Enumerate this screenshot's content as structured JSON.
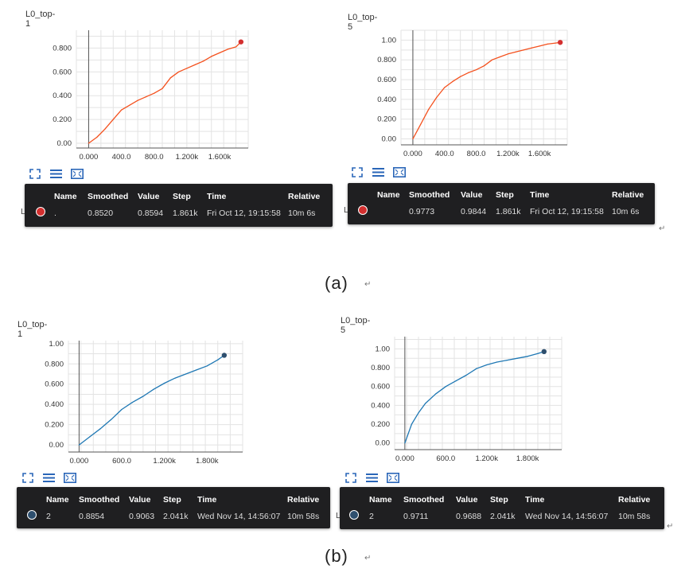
{
  "captions": {
    "a": "(a)",
    "b": "(b)",
    "return_mark": "↵"
  },
  "tooltip_headers": {
    "name": "Name",
    "smoothed": "Smoothed",
    "value": "Value",
    "step": "Step",
    "time": "Time",
    "relative": "Relative"
  },
  "icons": [
    "expand-icon",
    "list-icon",
    "fit-domain-icon"
  ],
  "colors": {
    "red": "#f4511e",
    "red_dot": "#d32f2f",
    "blue": "#1f78b4",
    "blue_dot": "#2e4f6e"
  },
  "panels": [
    {
      "id": "a1",
      "title": "L0_top-1",
      "stub": "L",
      "row": {
        "name": ".",
        "smoothed": "0.8520",
        "value": "0.8594",
        "step": "1.861k",
        "time": "Fri Oct 12, 19:15:58",
        "relative": "10m 6s"
      },
      "chart_data": {
        "type": "line",
        "title": "L0_top-1",
        "x_ticks": [
          "0.000",
          "400.0",
          "800.0",
          "1.200k",
          "1.600k"
        ],
        "y_ticks": [
          "0.00",
          "0.200",
          "0.400",
          "0.600",
          "0.800"
        ],
        "ylim": [
          -0.04,
          0.95
        ],
        "xlim": [
          -150,
          1950
        ],
        "grid": true,
        "color": "red",
        "x": [
          0,
          100,
          200,
          300,
          400,
          500,
          600,
          700,
          800,
          900,
          1000,
          1100,
          1200,
          1300,
          1400,
          1500,
          1600,
          1700,
          1800,
          1861
        ],
        "y": [
          0.0,
          0.05,
          0.12,
          0.2,
          0.28,
          0.32,
          0.36,
          0.39,
          0.42,
          0.46,
          0.55,
          0.6,
          0.63,
          0.66,
          0.69,
          0.73,
          0.76,
          0.79,
          0.81,
          0.852
        ]
      }
    },
    {
      "id": "a2",
      "title": "L0_top-5",
      "stub": "L",
      "row": {
        "name": "",
        "smoothed": "0.9773",
        "value": "0.9844",
        "step": "1.861k",
        "time": "Fri Oct 12, 19:15:58",
        "relative": "10m 6s"
      },
      "chart_data": {
        "type": "line",
        "title": "L0_top-5",
        "x_ticks": [
          "0.000",
          "400.0",
          "800.0",
          "1.200k",
          "1.600k"
        ],
        "y_ticks": [
          "0.00",
          "0.200",
          "0.400",
          "0.600",
          "0.800",
          "1.00"
        ],
        "ylim": [
          -0.06,
          1.1
        ],
        "xlim": [
          -150,
          1950
        ],
        "grid": true,
        "color": "red",
        "x": [
          0,
          100,
          200,
          300,
          400,
          500,
          600,
          700,
          800,
          900,
          1000,
          1100,
          1200,
          1300,
          1400,
          1500,
          1600,
          1700,
          1800,
          1861
        ],
        "y": [
          0.0,
          0.15,
          0.3,
          0.42,
          0.52,
          0.58,
          0.63,
          0.67,
          0.7,
          0.74,
          0.8,
          0.83,
          0.86,
          0.88,
          0.9,
          0.92,
          0.94,
          0.96,
          0.97,
          0.977
        ]
      }
    },
    {
      "id": "b1",
      "title": "L0_top-1",
      "stub": "",
      "row": {
        "name": "2",
        "smoothed": "0.8854",
        "value": "0.9063",
        "step": "2.041k",
        "time": "Wed Nov 14, 14:56:07",
        "relative": "10m 58s"
      },
      "chart_data": {
        "type": "line",
        "title": "L0_top-1",
        "x_ticks": [
          "0.000",
          "600.0",
          "1.200k",
          "1.800k"
        ],
        "y_ticks": [
          "0.00",
          "0.200",
          "0.400",
          "0.600",
          "0.800",
          "1.00"
        ],
        "ylim": [
          -0.07,
          1.03
        ],
        "xlim": [
          -150,
          2300
        ],
        "grid": true,
        "color": "blue",
        "x": [
          0,
          150,
          300,
          450,
          600,
          750,
          900,
          1050,
          1200,
          1350,
          1500,
          1650,
          1800,
          1950,
          2041
        ],
        "y": [
          0.0,
          0.08,
          0.16,
          0.25,
          0.35,
          0.42,
          0.48,
          0.55,
          0.61,
          0.66,
          0.7,
          0.74,
          0.78,
          0.84,
          0.885
        ]
      }
    },
    {
      "id": "b2",
      "title": "L0_top-5",
      "stub": "L",
      "row": {
        "name": "2",
        "smoothed": "0.9711",
        "value": "0.9688",
        "step": "2.041k",
        "time": "Wed Nov 14, 14:56:07",
        "relative": "10m 58s"
      },
      "chart_data": {
        "type": "line",
        "title": "L0_top-5",
        "x_ticks": [
          "0.000",
          "600.0",
          "1.200k",
          "1.800k"
        ],
        "y_ticks": [
          "0.00",
          "0.200",
          "0.400",
          "0.600",
          "0.800",
          "1.00"
        ],
        "ylim": [
          -0.07,
          1.13
        ],
        "xlim": [
          -150,
          2300
        ],
        "grid": true,
        "color": "blue",
        "x": [
          0,
          100,
          200,
          300,
          450,
          600,
          750,
          900,
          1050,
          1200,
          1350,
          1500,
          1650,
          1800,
          1950,
          2041
        ],
        "y": [
          0.0,
          0.2,
          0.32,
          0.42,
          0.52,
          0.6,
          0.66,
          0.72,
          0.79,
          0.83,
          0.86,
          0.88,
          0.9,
          0.92,
          0.95,
          0.971
        ]
      }
    }
  ]
}
